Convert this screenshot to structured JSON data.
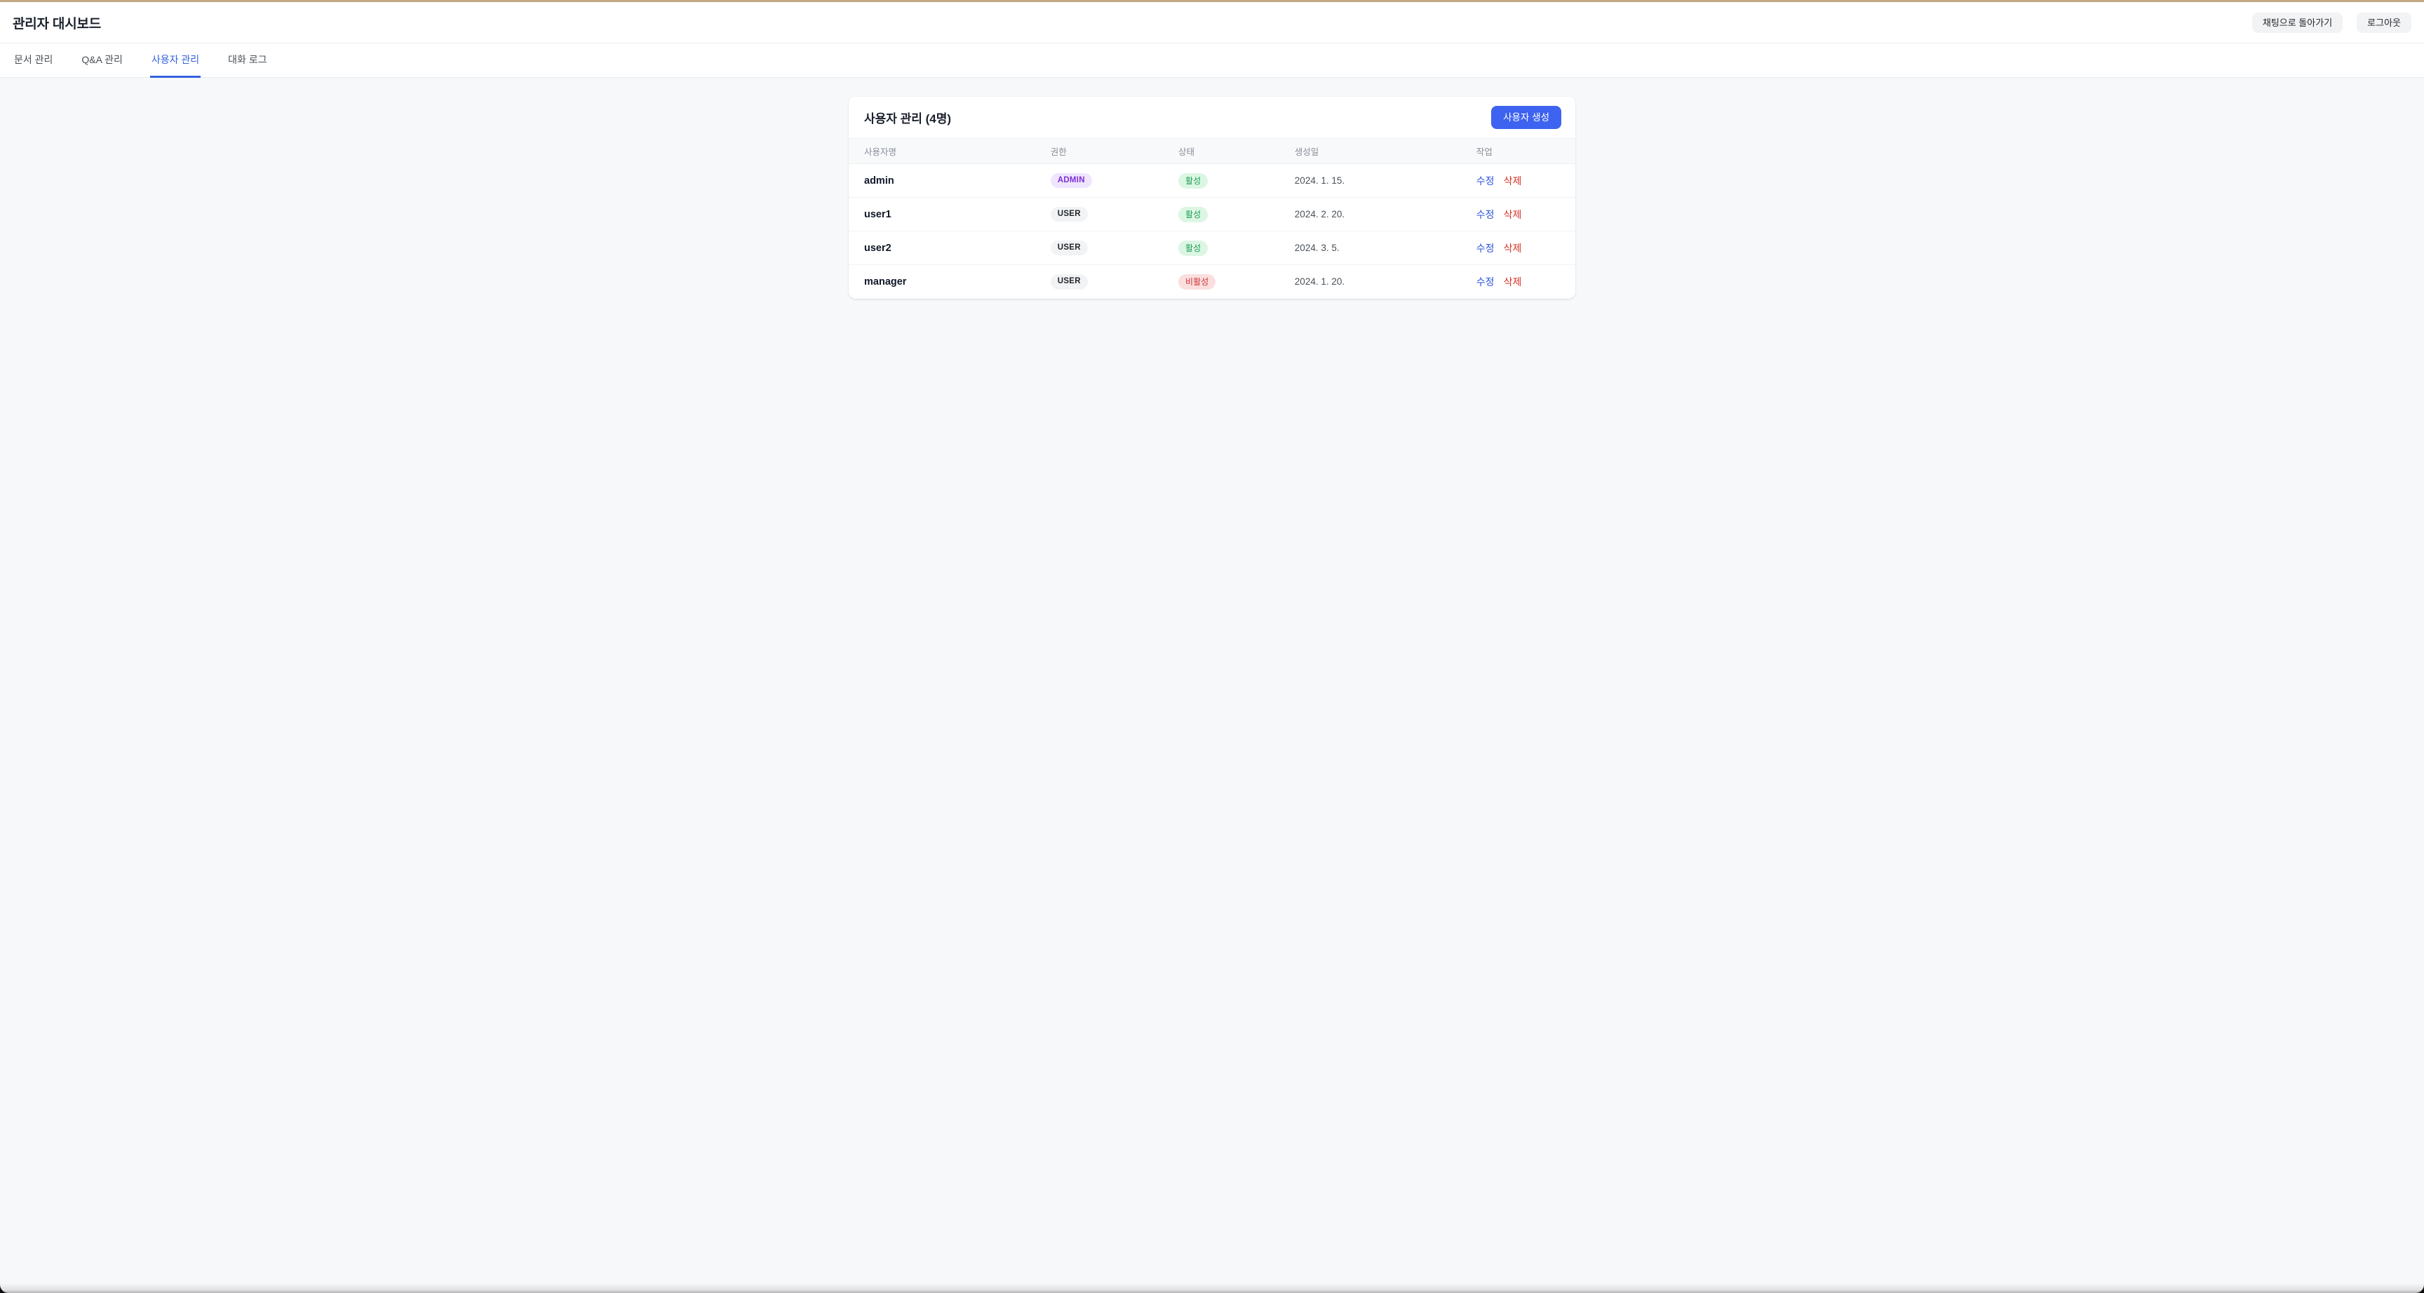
{
  "header": {
    "title": "관리자 대시보드",
    "back_to_chat_button": "채팅으로 돌아가기",
    "logout_button": "로그아웃"
  },
  "tabs": [
    {
      "label": "문서 관리",
      "active": false
    },
    {
      "label": "Q&A 관리",
      "active": false
    },
    {
      "label": "사용자 관리",
      "active": true
    },
    {
      "label": "대화 로그",
      "active": false
    }
  ],
  "panel": {
    "title": "사용자 관리 (4명)",
    "create_user_button": "사용자 생성",
    "table": {
      "columns": [
        "사용자명",
        "권한",
        "상태",
        "생성일",
        "작업"
      ],
      "rows": [
        {
          "username": "admin",
          "role": "ADMIN",
          "status": "활성",
          "created_at": "2024. 1. 15.",
          "edit": "수정",
          "delete": "삭제"
        },
        {
          "username": "user1",
          "role": "USER",
          "status": "활성",
          "created_at": "2024. 2. 20.",
          "edit": "수정",
          "delete": "삭제"
        },
        {
          "username": "user2",
          "role": "USER",
          "status": "활성",
          "created_at": "2024. 3. 5.",
          "edit": "수정",
          "delete": "삭제"
        },
        {
          "username": "manager",
          "role": "USER",
          "status": "비활성",
          "created_at": "2024. 1. 20.",
          "edit": "수정",
          "delete": "삭제"
        }
      ]
    }
  },
  "colors": {
    "top_strip": "#c3aa84",
    "accent_tab_blue": "#3461e0",
    "primary_button_blue": "#3d63f0",
    "edit_link_blue": "#2c55e0",
    "delete_link_red": "#d63226",
    "badge_admin_bg": "#efe5fd",
    "badge_admin_text": "#7c2fd6",
    "badge_user_bg": "#f1f3f5",
    "badge_user_text": "#212529",
    "badge_active_bg": "#dcf6e4",
    "badge_active_text": "#1f9d54",
    "badge_inactive_bg": "#fbdfdf",
    "badge_inactive_text": "#cc3333",
    "content_background": "#f7f8fa"
  }
}
